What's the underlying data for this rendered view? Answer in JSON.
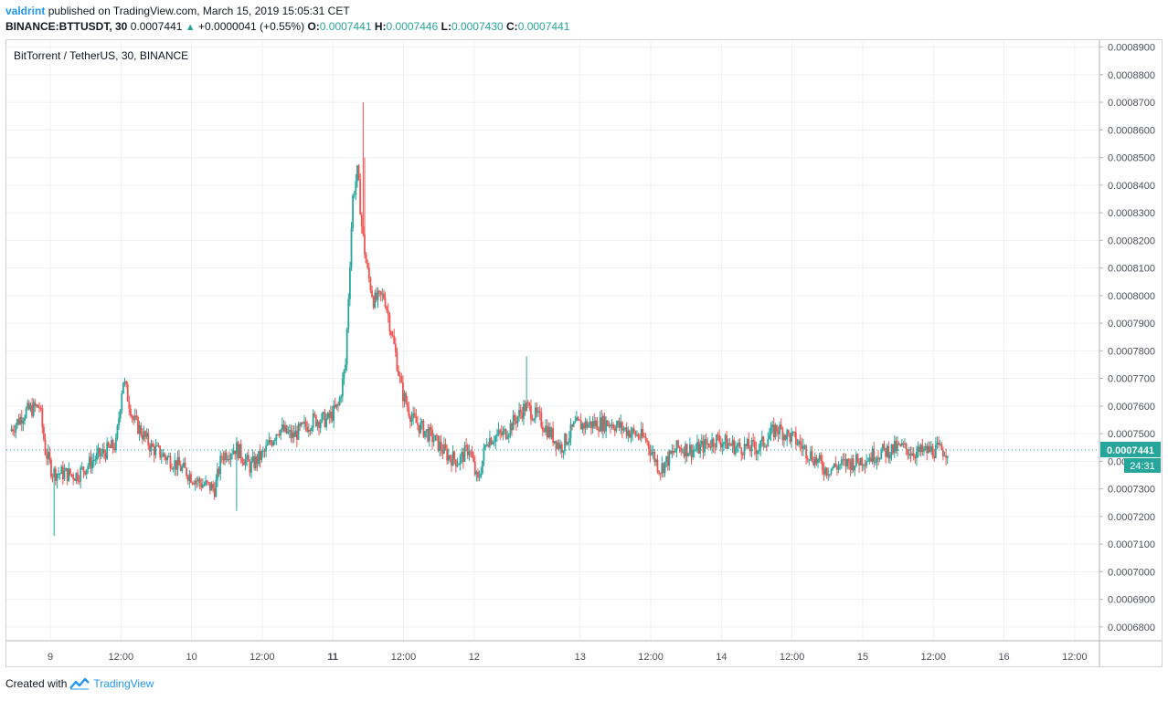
{
  "header": {
    "author": "valdrint",
    "published": "published on TradingView.com, March 15, 2019 15:05:31 CET",
    "symbol": "BINANCE:BTTUSDT, 30",
    "last": "0.0007441",
    "change": "+0.0000041 (+0.55%)",
    "o_label": "O:",
    "o_value": "0.0007441",
    "h_label": "H:",
    "h_value": "0.0007446",
    "l_label": "L:",
    "l_value": "0.0007430",
    "c_label": "C:",
    "c_value": "0.0007441"
  },
  "footer": {
    "created": "Created with",
    "brand": "TradingView"
  },
  "colors": {
    "up": "#26a69a",
    "down": "#ef5350",
    "grid": "#eef0f4",
    "accent": "#2196f3"
  },
  "chart_data": {
    "type": "candlestick",
    "title": "BitTorrent / TetherUS, 30, BINANCE",
    "x_ticks": [
      "9",
      "12:00",
      "10",
      "12:00",
      "11",
      "12:00",
      "12",
      "13",
      "12:00",
      "14",
      "12:00",
      "15",
      "12:00",
      "16",
      "12:00"
    ],
    "x_tick_bold": [
      false,
      false,
      false,
      false,
      true,
      false,
      false,
      false,
      false,
      false,
      false,
      false,
      false,
      false,
      false
    ],
    "x_tick_pos": [
      0.55,
      1.55,
      2.55,
      3.55,
      4.55,
      5.55,
      6.55,
      8.05,
      9.05,
      10.05,
      11.05,
      12.05,
      13.05,
      14.05,
      15.05
    ],
    "y_ticks": [
      "0.0008900",
      "0.0008800",
      "0.0008700",
      "0.0008600",
      "0.0008500",
      "0.0008400",
      "0.0008300",
      "0.0008200",
      "0.0008100",
      "0.0008000",
      "0.0007900",
      "0.0007800",
      "0.0007700",
      "0.0007600",
      "0.0007500",
      "0.0007400",
      "0.0007300",
      "0.0007200",
      "0.0007100",
      "0.0007000",
      "0.0006900",
      "0.0006800"
    ],
    "y_range": [
      0.000675,
      0.0008925
    ],
    "last_price": "0.0007441",
    "countdown": "24:31",
    "anchors": [
      [
        0.0,
        0.000751
      ],
      [
        0.22,
        0.000758
      ],
      [
        0.42,
        0.00076
      ],
      [
        0.5,
        0.000744
      ],
      [
        0.6,
        0.000736
      ],
      [
        0.95,
        0.000735
      ],
      [
        1.2,
        0.000741
      ],
      [
        1.5,
        0.000746
      ],
      [
        1.6,
        0.00077
      ],
      [
        1.75,
        0.000755
      ],
      [
        2.0,
        0.000745
      ],
      [
        2.3,
        0.00074
      ],
      [
        2.5,
        0.000736
      ],
      [
        2.7,
        0.000732
      ],
      [
        2.9,
        0.00073
      ],
      [
        3.0,
        0.000742
      ],
      [
        3.2,
        0.000745
      ],
      [
        3.4,
        0.000738
      ],
      [
        3.6,
        0.000743
      ],
      [
        3.8,
        0.000752
      ],
      [
        4.0,
        0.000749
      ],
      [
        4.3,
        0.000755
      ],
      [
        4.5,
        0.000755
      ],
      [
        4.65,
        0.00076
      ],
      [
        4.75,
        0.000775
      ],
      [
        4.85,
        0.000835
      ],
      [
        4.92,
        0.000845
      ],
      [
        4.98,
        0.000825
      ],
      [
        5.05,
        0.00081
      ],
      [
        5.15,
        0.000798
      ],
      [
        5.3,
        0.0008
      ],
      [
        5.45,
        0.00078
      ],
      [
        5.55,
        0.000765
      ],
      [
        5.7,
        0.000755
      ],
      [
        6.0,
        0.000748
      ],
      [
        6.2,
        0.000742
      ],
      [
        6.35,
        0.00074
      ],
      [
        6.5,
        0.000745
      ],
      [
        6.62,
        0.000732
      ],
      [
        6.75,
        0.000748
      ],
      [
        7.0,
        0.00075
      ],
      [
        7.3,
        0.00076
      ],
      [
        7.5,
        0.000755
      ],
      [
        7.8,
        0.000745
      ],
      [
        8.0,
        0.000753
      ],
      [
        8.5,
        0.000754
      ],
      [
        9.0,
        0.000748
      ],
      [
        9.2,
        0.000737
      ],
      [
        9.45,
        0.000745
      ],
      [
        9.7,
        0.000744
      ],
      [
        10.0,
        0.000748
      ],
      [
        10.3,
        0.000745
      ],
      [
        10.6,
        0.000745
      ],
      [
        10.85,
        0.000752
      ],
      [
        11.1,
        0.000748
      ],
      [
        11.35,
        0.000742
      ],
      [
        11.55,
        0.000737
      ],
      [
        11.8,
        0.000739
      ],
      [
        12.0,
        0.00074
      ],
      [
        12.3,
        0.000743
      ],
      [
        12.6,
        0.000745
      ],
      [
        12.85,
        0.000743
      ],
      [
        13.05,
        0.000744
      ],
      [
        13.25,
        0.000744
      ]
    ],
    "wick_spikes": [
      {
        "t": 0.6,
        "low": 0.000713
      },
      {
        "t": 3.18,
        "low": 0.000722
      },
      {
        "t": 4.97,
        "high": 0.00087
      },
      {
        "t": 4.99,
        "high": 0.00085
      },
      {
        "t": 7.3,
        "high": 0.000778
      }
    ]
  }
}
